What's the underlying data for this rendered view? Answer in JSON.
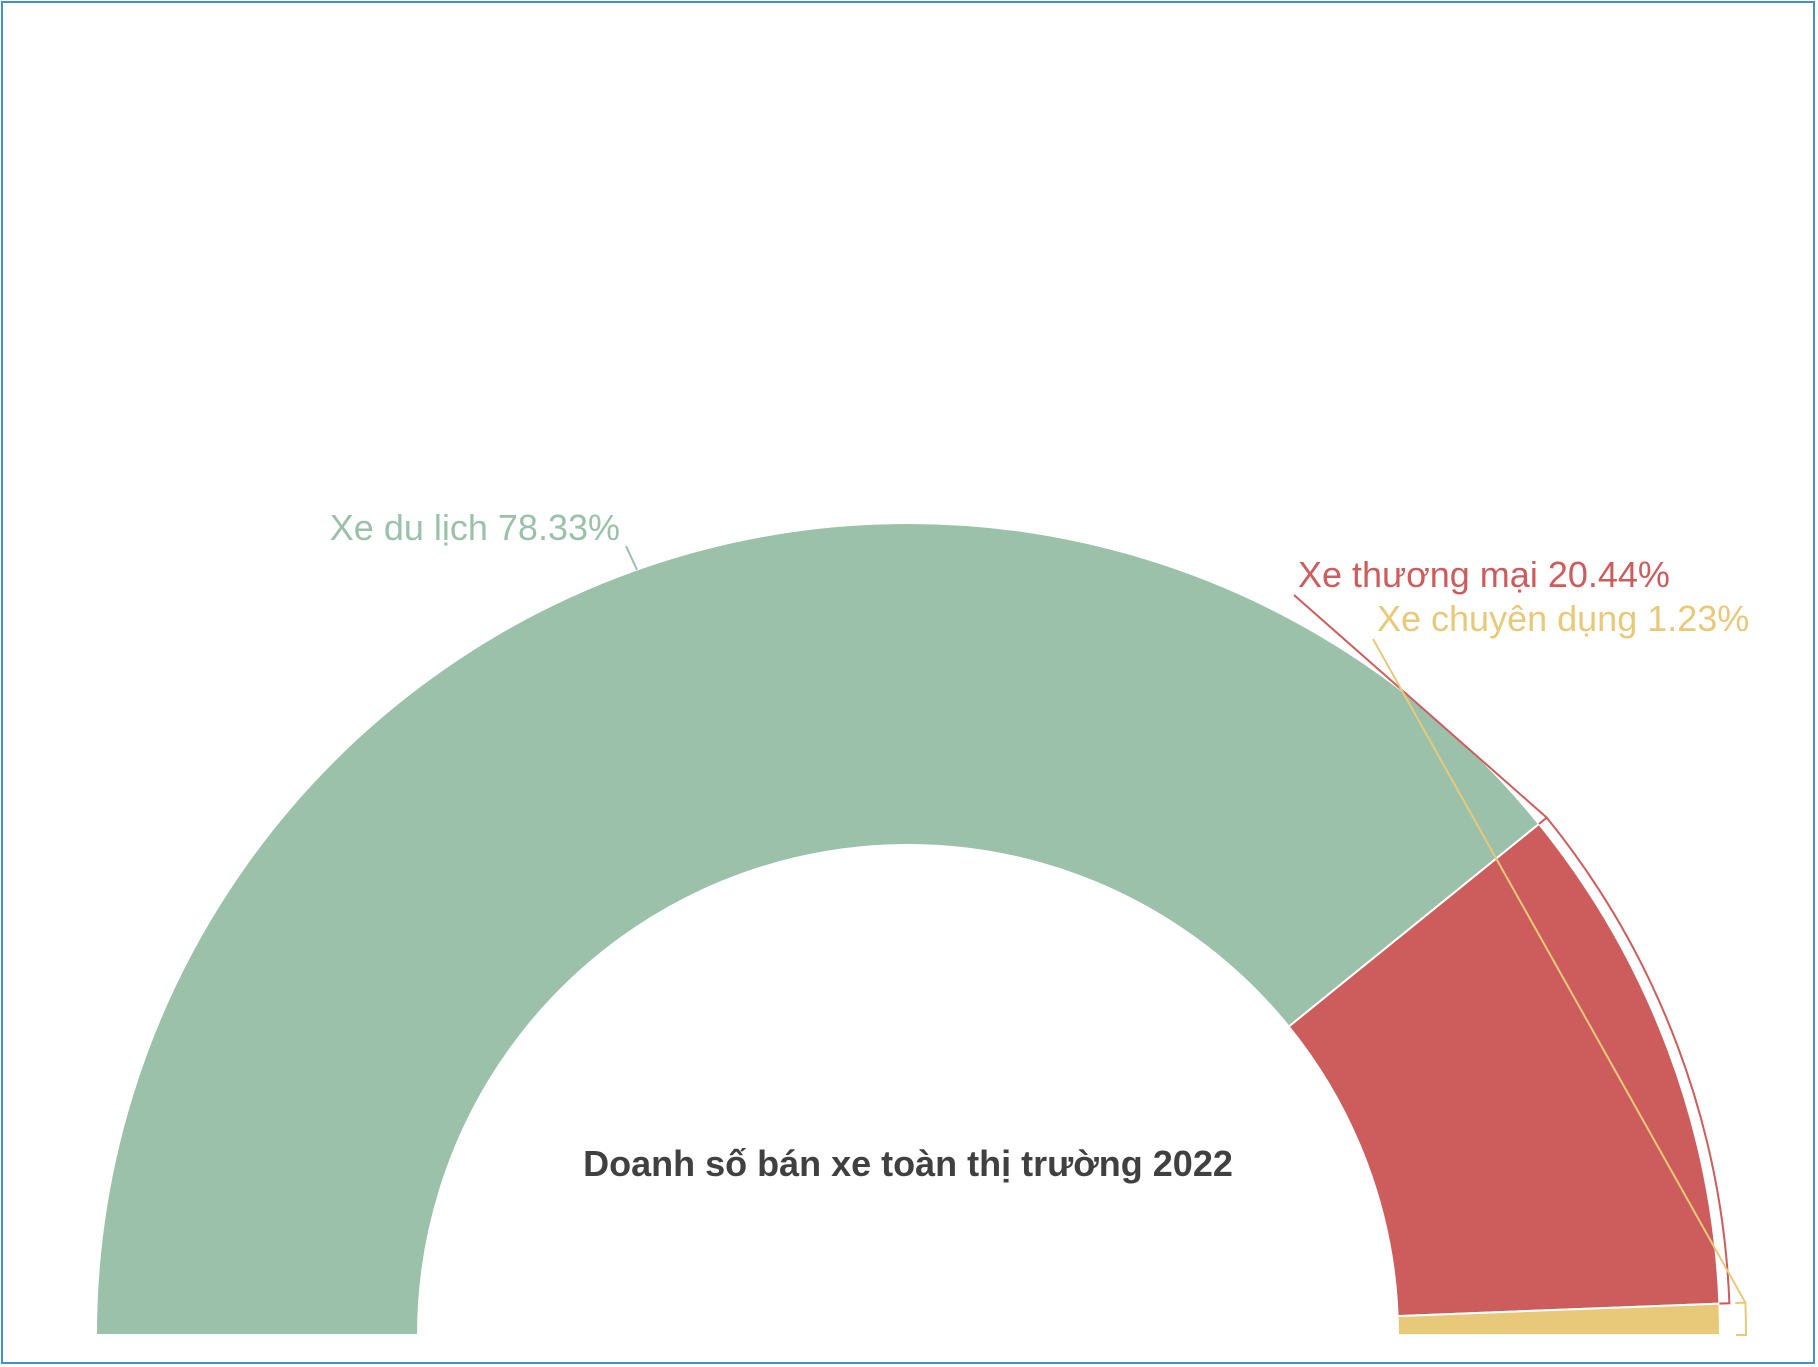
{
  "chart_data": {
    "type": "pie",
    "subtype": "half-donut",
    "title": "Doanh số bán xe toàn thị trường 2022",
    "categories": [
      "Xe du lịch",
      "Xe thương mại",
      "Xe chuyên dụng"
    ],
    "values": [
      78.33,
      20.44,
      1.23
    ],
    "unit": "%",
    "colors": [
      "#9bc1aa",
      "#cd5c5c",
      "#e8c97a"
    ],
    "labels": [
      "Xe du lịch 78.33%",
      "Xe thương mại 20.44%",
      "Xe chuyên dụng 1.23%"
    ],
    "legend": "none"
  }
}
